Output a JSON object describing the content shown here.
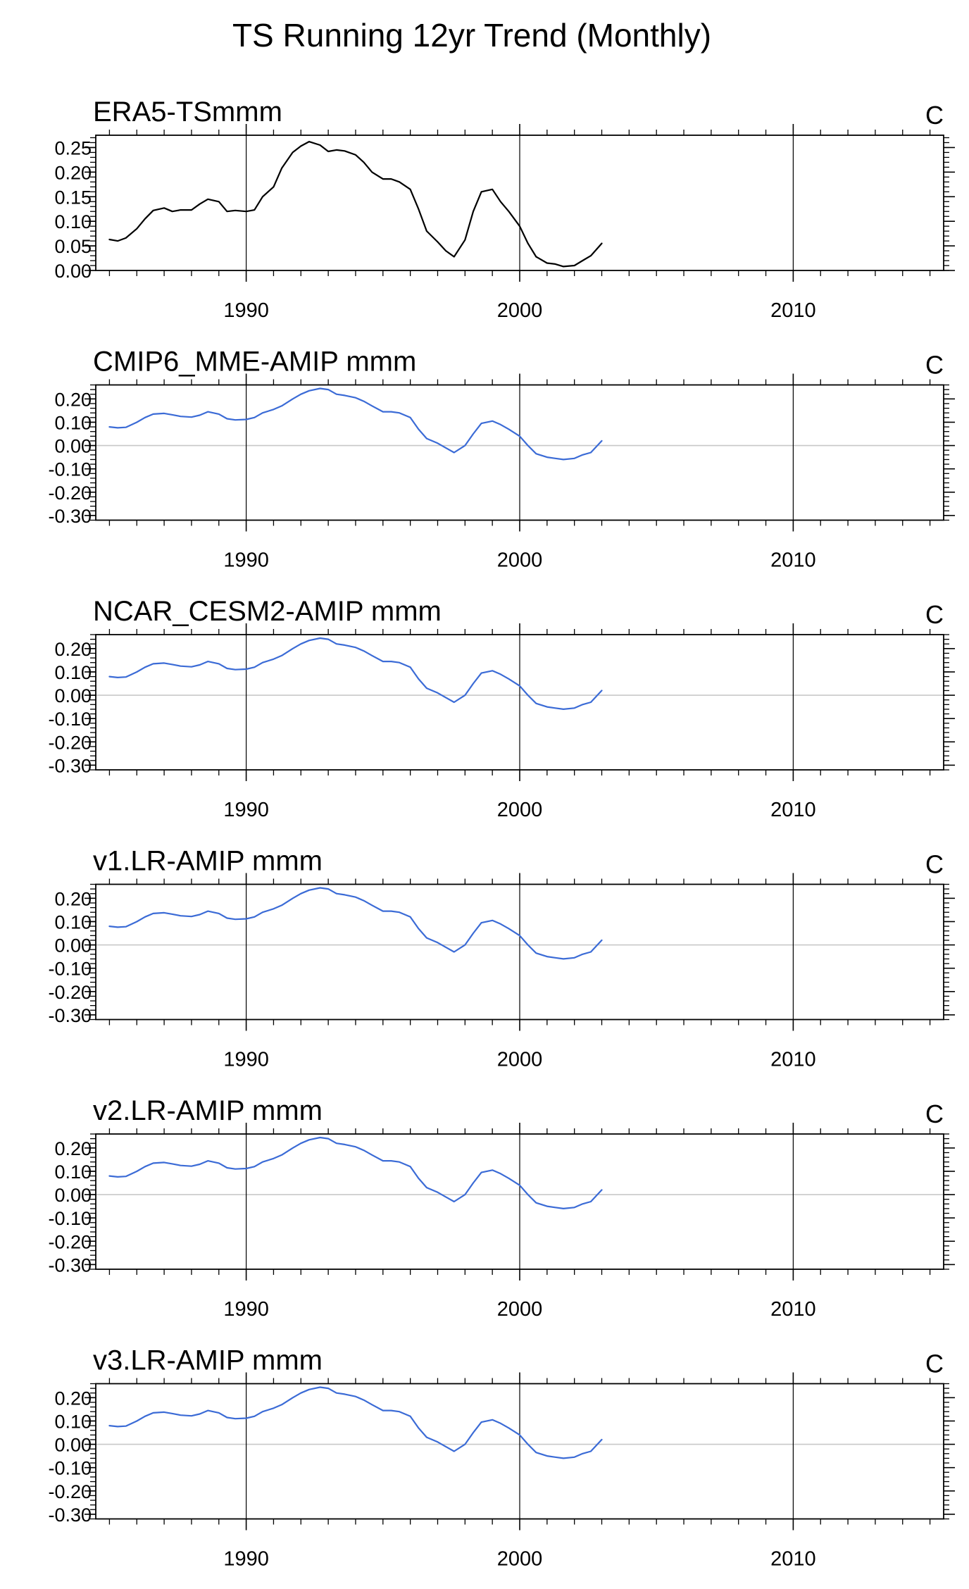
{
  "title": "TS Running 12yr Trend (Monthly)",
  "chart_data": [
    {
      "type": "line",
      "title": "ERA5-TSmmm",
      "units": "C",
      "line_color": "#000000",
      "xlim": [
        1984.5,
        2015.5
      ],
      "xticks": [
        1990,
        2000,
        2010
      ],
      "ylim": [
        0.0,
        0.275
      ],
      "yticks": [
        0.0,
        0.05,
        0.1,
        0.15,
        0.2,
        0.25
      ],
      "ytick_labels": [
        "0.00",
        "0.05",
        "0.10",
        "0.15",
        "0.20",
        "0.25"
      ],
      "zero_line": false,
      "series": [
        {
          "x": [
            1985.0,
            1985.3,
            1985.6,
            1986.0,
            1986.3,
            1986.6,
            1987.0,
            1987.3,
            1987.6,
            1988.0,
            1988.3,
            1988.6,
            1989.0,
            1989.3,
            1989.6,
            1990.0,
            1990.3,
            1990.6,
            1991.0,
            1991.3,
            1991.7,
            1992.0,
            1992.3,
            1992.7,
            1993.0,
            1993.3,
            1993.6,
            1994.0,
            1994.3,
            1994.6,
            1995.0,
            1995.3,
            1995.6,
            1996.0,
            1996.3,
            1996.6,
            1997.0,
            1997.3,
            1997.6,
            1998.0,
            1998.3,
            1998.6,
            1999.0,
            1999.3,
            1999.6,
            2000.0,
            2000.3,
            2000.6,
            2001.0,
            2001.3,
            2001.6,
            2002.0,
            2002.3,
            2002.6,
            2003.0
          ],
          "y": [
            0.063,
            0.06,
            0.066,
            0.085,
            0.105,
            0.122,
            0.127,
            0.12,
            0.123,
            0.123,
            0.135,
            0.145,
            0.14,
            0.12,
            0.122,
            0.12,
            0.123,
            0.15,
            0.17,
            0.208,
            0.24,
            0.253,
            0.262,
            0.255,
            0.242,
            0.245,
            0.243,
            0.235,
            0.22,
            0.2,
            0.186,
            0.186,
            0.18,
            0.165,
            0.125,
            0.08,
            0.058,
            0.04,
            0.028,
            0.062,
            0.12,
            0.16,
            0.165,
            0.14,
            0.12,
            0.09,
            0.055,
            0.028,
            0.015,
            0.013,
            0.008,
            0.01,
            0.02,
            0.03,
            0.055
          ]
        }
      ]
    },
    {
      "type": "line",
      "title": "CMIP6_MME-AMIP  mmm",
      "units": "C",
      "line_color": "#3b6bd6",
      "xlim": [
        1984.5,
        2015.5
      ],
      "xticks": [
        1990,
        2000,
        2010
      ],
      "ylim": [
        -0.32,
        0.26
      ],
      "yticks": [
        -0.3,
        -0.2,
        -0.1,
        0.0,
        0.1,
        0.2
      ],
      "ytick_labels": [
        "-0.30",
        "-0.20",
        "-0.10",
        "0.00",
        "0.10",
        "0.20"
      ],
      "zero_line": true,
      "series": [
        {
          "x": [
            1985.0,
            1985.3,
            1985.6,
            1986.0,
            1986.3,
            1986.6,
            1987.0,
            1987.3,
            1987.6,
            1988.0,
            1988.3,
            1988.6,
            1989.0,
            1989.3,
            1989.6,
            1990.0,
            1990.3,
            1990.6,
            1991.0,
            1991.3,
            1991.7,
            1992.0,
            1992.3,
            1992.7,
            1993.0,
            1993.3,
            1993.6,
            1994.0,
            1994.3,
            1994.6,
            1995.0,
            1995.3,
            1995.6,
            1996.0,
            1996.3,
            1996.6,
            1997.0,
            1997.3,
            1997.6,
            1998.0,
            1998.3,
            1998.6,
            1999.0,
            1999.3,
            1999.6,
            2000.0,
            2000.3,
            2000.6,
            2001.0,
            2001.3,
            2001.6,
            2002.0,
            2002.3,
            2002.6,
            2003.0
          ],
          "y": [
            0.08,
            0.076,
            0.078,
            0.1,
            0.12,
            0.135,
            0.138,
            0.132,
            0.125,
            0.122,
            0.13,
            0.145,
            0.135,
            0.115,
            0.11,
            0.112,
            0.12,
            0.14,
            0.155,
            0.17,
            0.2,
            0.22,
            0.235,
            0.245,
            0.24,
            0.22,
            0.215,
            0.205,
            0.19,
            0.17,
            0.145,
            0.145,
            0.14,
            0.12,
            0.07,
            0.03,
            0.01,
            -0.01,
            -0.03,
            0.0,
            0.05,
            0.095,
            0.105,
            0.09,
            0.07,
            0.04,
            0.0,
            -0.035,
            -0.05,
            -0.055,
            -0.06,
            -0.055,
            -0.04,
            -0.03,
            0.02
          ]
        }
      ]
    },
    {
      "type": "line",
      "title": "NCAR_CESM2-AMIP  mmm",
      "units": "C",
      "line_color": "#3b6bd6",
      "xlim": [
        1984.5,
        2015.5
      ],
      "xticks": [
        1990,
        2000,
        2010
      ],
      "ylim": [
        -0.32,
        0.26
      ],
      "yticks": [
        -0.3,
        -0.2,
        -0.1,
        0.0,
        0.1,
        0.2
      ],
      "ytick_labels": [
        "-0.30",
        "-0.20",
        "-0.10",
        "0.00",
        "0.10",
        "0.20"
      ],
      "zero_line": true,
      "series": [
        {
          "x": [
            1985.0,
            1985.3,
            1985.6,
            1986.0,
            1986.3,
            1986.6,
            1987.0,
            1987.3,
            1987.6,
            1988.0,
            1988.3,
            1988.6,
            1989.0,
            1989.3,
            1989.6,
            1990.0,
            1990.3,
            1990.6,
            1991.0,
            1991.3,
            1991.7,
            1992.0,
            1992.3,
            1992.7,
            1993.0,
            1993.3,
            1993.6,
            1994.0,
            1994.3,
            1994.6,
            1995.0,
            1995.3,
            1995.6,
            1996.0,
            1996.3,
            1996.6,
            1997.0,
            1997.3,
            1997.6,
            1998.0,
            1998.3,
            1998.6,
            1999.0,
            1999.3,
            1999.6,
            2000.0,
            2000.3,
            2000.6,
            2001.0,
            2001.3,
            2001.6,
            2002.0,
            2002.3,
            2002.6,
            2003.0
          ],
          "y": [
            0.08,
            0.076,
            0.078,
            0.1,
            0.12,
            0.135,
            0.138,
            0.132,
            0.125,
            0.122,
            0.13,
            0.145,
            0.135,
            0.115,
            0.11,
            0.112,
            0.12,
            0.14,
            0.155,
            0.17,
            0.2,
            0.22,
            0.235,
            0.245,
            0.24,
            0.22,
            0.215,
            0.205,
            0.19,
            0.17,
            0.145,
            0.145,
            0.14,
            0.12,
            0.07,
            0.03,
            0.01,
            -0.01,
            -0.03,
            0.0,
            0.05,
            0.095,
            0.105,
            0.09,
            0.07,
            0.04,
            0.0,
            -0.035,
            -0.05,
            -0.055,
            -0.06,
            -0.055,
            -0.04,
            -0.03,
            0.02
          ]
        }
      ]
    },
    {
      "type": "line",
      "title": "v1.LR-AMIP  mmm",
      "units": "C",
      "line_color": "#3b6bd6",
      "xlim": [
        1984.5,
        2015.5
      ],
      "xticks": [
        1990,
        2000,
        2010
      ],
      "ylim": [
        -0.32,
        0.26
      ],
      "yticks": [
        -0.3,
        -0.2,
        -0.1,
        0.0,
        0.1,
        0.2
      ],
      "ytick_labels": [
        "-0.30",
        "-0.20",
        "-0.10",
        "0.00",
        "0.10",
        "0.20"
      ],
      "zero_line": true,
      "series": [
        {
          "x": [
            1985.0,
            1985.3,
            1985.6,
            1986.0,
            1986.3,
            1986.6,
            1987.0,
            1987.3,
            1987.6,
            1988.0,
            1988.3,
            1988.6,
            1989.0,
            1989.3,
            1989.6,
            1990.0,
            1990.3,
            1990.6,
            1991.0,
            1991.3,
            1991.7,
            1992.0,
            1992.3,
            1992.7,
            1993.0,
            1993.3,
            1993.6,
            1994.0,
            1994.3,
            1994.6,
            1995.0,
            1995.3,
            1995.6,
            1996.0,
            1996.3,
            1996.6,
            1997.0,
            1997.3,
            1997.6,
            1998.0,
            1998.3,
            1998.6,
            1999.0,
            1999.3,
            1999.6,
            2000.0,
            2000.3,
            2000.6,
            2001.0,
            2001.3,
            2001.6,
            2002.0,
            2002.3,
            2002.6,
            2003.0
          ],
          "y": [
            0.08,
            0.076,
            0.078,
            0.1,
            0.12,
            0.135,
            0.138,
            0.132,
            0.125,
            0.122,
            0.13,
            0.145,
            0.135,
            0.115,
            0.11,
            0.112,
            0.12,
            0.14,
            0.155,
            0.17,
            0.2,
            0.22,
            0.235,
            0.245,
            0.24,
            0.22,
            0.215,
            0.205,
            0.19,
            0.17,
            0.145,
            0.145,
            0.14,
            0.12,
            0.07,
            0.03,
            0.01,
            -0.01,
            -0.03,
            0.0,
            0.05,
            0.095,
            0.105,
            0.09,
            0.07,
            0.04,
            0.0,
            -0.035,
            -0.05,
            -0.055,
            -0.06,
            -0.055,
            -0.04,
            -0.03,
            0.02
          ]
        }
      ]
    },
    {
      "type": "line",
      "title": "v2.LR-AMIP  mmm",
      "units": "C",
      "line_color": "#3b6bd6",
      "xlim": [
        1984.5,
        2015.5
      ],
      "xticks": [
        1990,
        2000,
        2010
      ],
      "ylim": [
        -0.32,
        0.26
      ],
      "yticks": [
        -0.3,
        -0.2,
        -0.1,
        0.0,
        0.1,
        0.2
      ],
      "ytick_labels": [
        "-0.30",
        "-0.20",
        "-0.10",
        "0.00",
        "0.10",
        "0.20"
      ],
      "zero_line": true,
      "series": [
        {
          "x": [
            1985.0,
            1985.3,
            1985.6,
            1986.0,
            1986.3,
            1986.6,
            1987.0,
            1987.3,
            1987.6,
            1988.0,
            1988.3,
            1988.6,
            1989.0,
            1989.3,
            1989.6,
            1990.0,
            1990.3,
            1990.6,
            1991.0,
            1991.3,
            1991.7,
            1992.0,
            1992.3,
            1992.7,
            1993.0,
            1993.3,
            1993.6,
            1994.0,
            1994.3,
            1994.6,
            1995.0,
            1995.3,
            1995.6,
            1996.0,
            1996.3,
            1996.6,
            1997.0,
            1997.3,
            1997.6,
            1998.0,
            1998.3,
            1998.6,
            1999.0,
            1999.3,
            1999.6,
            2000.0,
            2000.3,
            2000.6,
            2001.0,
            2001.3,
            2001.6,
            2002.0,
            2002.3,
            2002.6,
            2003.0
          ],
          "y": [
            0.08,
            0.076,
            0.078,
            0.1,
            0.12,
            0.135,
            0.138,
            0.132,
            0.125,
            0.122,
            0.13,
            0.145,
            0.135,
            0.115,
            0.11,
            0.112,
            0.12,
            0.14,
            0.155,
            0.17,
            0.2,
            0.22,
            0.235,
            0.245,
            0.24,
            0.22,
            0.215,
            0.205,
            0.19,
            0.17,
            0.145,
            0.145,
            0.14,
            0.12,
            0.07,
            0.03,
            0.01,
            -0.01,
            -0.03,
            0.0,
            0.05,
            0.095,
            0.105,
            0.09,
            0.07,
            0.04,
            0.0,
            -0.035,
            -0.05,
            -0.055,
            -0.06,
            -0.055,
            -0.04,
            -0.03,
            0.02
          ]
        }
      ]
    },
    {
      "type": "line",
      "title": "v3.LR-AMIP  mmm",
      "units": "C",
      "line_color": "#3b6bd6",
      "xlim": [
        1984.5,
        2015.5
      ],
      "xticks": [
        1990,
        2000,
        2010
      ],
      "ylim": [
        -0.32,
        0.26
      ],
      "yticks": [
        -0.3,
        -0.2,
        -0.1,
        0.0,
        0.1,
        0.2
      ],
      "ytick_labels": [
        "-0.30",
        "-0.20",
        "-0.10",
        "0.00",
        "0.10",
        "0.20"
      ],
      "zero_line": true,
      "series": [
        {
          "x": [
            1985.0,
            1985.3,
            1985.6,
            1986.0,
            1986.3,
            1986.6,
            1987.0,
            1987.3,
            1987.6,
            1988.0,
            1988.3,
            1988.6,
            1989.0,
            1989.3,
            1989.6,
            1990.0,
            1990.3,
            1990.6,
            1991.0,
            1991.3,
            1991.7,
            1992.0,
            1992.3,
            1992.7,
            1993.0,
            1993.3,
            1993.6,
            1994.0,
            1994.3,
            1994.6,
            1995.0,
            1995.3,
            1995.6,
            1996.0,
            1996.3,
            1996.6,
            1997.0,
            1997.3,
            1997.6,
            1998.0,
            1998.3,
            1998.6,
            1999.0,
            1999.3,
            1999.6,
            2000.0,
            2000.3,
            2000.6,
            2001.0,
            2001.3,
            2001.6,
            2002.0,
            2002.3,
            2002.6,
            2003.0
          ],
          "y": [
            0.08,
            0.076,
            0.078,
            0.1,
            0.12,
            0.135,
            0.138,
            0.132,
            0.125,
            0.122,
            0.13,
            0.145,
            0.135,
            0.115,
            0.11,
            0.112,
            0.12,
            0.14,
            0.155,
            0.17,
            0.2,
            0.22,
            0.235,
            0.245,
            0.24,
            0.22,
            0.215,
            0.205,
            0.19,
            0.17,
            0.145,
            0.145,
            0.14,
            0.12,
            0.07,
            0.03,
            0.01,
            -0.01,
            -0.03,
            0.0,
            0.05,
            0.095,
            0.105,
            0.09,
            0.07,
            0.04,
            0.0,
            -0.035,
            -0.05,
            -0.055,
            -0.06,
            -0.055,
            -0.04,
            -0.03,
            0.02
          ]
        }
      ]
    }
  ]
}
